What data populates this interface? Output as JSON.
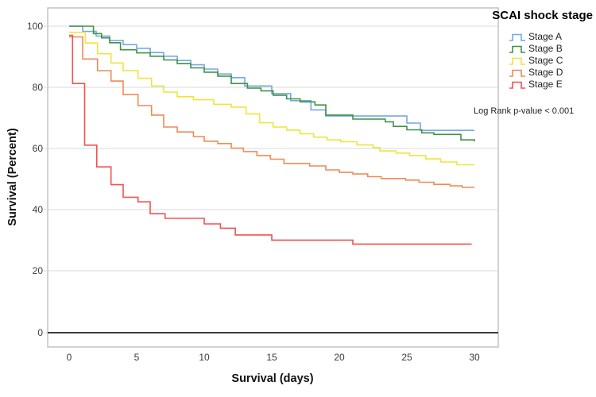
{
  "chart_data": {
    "type": "line",
    "subtype": "kaplan-meier-step",
    "legend_title": "SCAI shock stage",
    "annotation": "Log Rank p-value < 0.001",
    "xlabel": "Survival (days)",
    "ylabel": "Survival (Percent)",
    "xlim": [
      0,
      30
    ],
    "ylim": [
      0,
      100
    ],
    "x_ticks": [
      "0",
      "5",
      "10",
      "15",
      "20",
      "25",
      "30"
    ],
    "y_ticks": [
      "100",
      "80",
      "60",
      "40",
      "20",
      "0"
    ],
    "grid": true,
    "legend_position": "top-right",
    "series": [
      {
        "name": "Stage A",
        "color": "#74A9E6",
        "points": [
          [
            0,
            100
          ],
          [
            1,
            98.3
          ],
          [
            2,
            96.8
          ],
          [
            3,
            95.3
          ],
          [
            4,
            94.0
          ],
          [
            5,
            92.8
          ],
          [
            6,
            91.4
          ],
          [
            7,
            90.2
          ],
          [
            8,
            88.8
          ],
          [
            9,
            87.4
          ],
          [
            10,
            86.0
          ],
          [
            11,
            84.4
          ],
          [
            12,
            83.2
          ],
          [
            13,
            80.5
          ],
          [
            15,
            78.0
          ],
          [
            16.4,
            75.7
          ],
          [
            17.9,
            72.7
          ],
          [
            19,
            70.7
          ],
          [
            25,
            68.4
          ],
          [
            26,
            66.0
          ],
          [
            30,
            66.0
          ]
        ]
      },
      {
        "name": "Stage B",
        "color": "#3F9245",
        "points": [
          [
            0,
            100
          ],
          [
            1.8,
            97.6
          ],
          [
            2.4,
            96.2
          ],
          [
            3,
            94.6
          ],
          [
            3.8,
            92.3
          ],
          [
            5,
            91.3
          ],
          [
            6,
            90.2
          ],
          [
            7,
            89.0
          ],
          [
            8,
            87.8
          ],
          [
            9,
            86.4
          ],
          [
            10,
            85.0
          ],
          [
            11,
            83.7
          ],
          [
            12,
            81.3
          ],
          [
            13.2,
            79.8
          ],
          [
            14.2,
            78.9
          ],
          [
            15.1,
            77.5
          ],
          [
            16.1,
            76.3
          ],
          [
            17.1,
            75.3
          ],
          [
            18.2,
            74.3
          ],
          [
            19,
            71.0
          ],
          [
            21,
            69.7
          ],
          [
            23.4,
            68.8
          ],
          [
            24,
            67.3
          ],
          [
            25,
            66.2
          ],
          [
            26.1,
            65.2
          ],
          [
            27,
            64.7
          ],
          [
            29,
            62.9
          ],
          [
            30,
            62.4
          ]
        ]
      },
      {
        "name": "Stage C",
        "color": "#F0E43C",
        "points": [
          [
            0,
            98.0
          ],
          [
            1.2,
            94.5
          ],
          [
            2.1,
            91.0
          ],
          [
            3.1,
            88.0
          ],
          [
            4,
            85.5
          ],
          [
            5.1,
            83.0
          ],
          [
            6.1,
            80.5
          ],
          [
            7,
            78.5
          ],
          [
            8,
            77.0
          ],
          [
            9.2,
            76.0
          ],
          [
            10.7,
            74.5
          ],
          [
            12,
            73.6
          ],
          [
            13.1,
            71.4
          ],
          [
            14.1,
            68.5
          ],
          [
            15.1,
            67.1
          ],
          [
            16.1,
            66.1
          ],
          [
            17.1,
            64.9
          ],
          [
            18.1,
            63.8
          ],
          [
            19.1,
            62.9
          ],
          [
            20.1,
            62.3
          ],
          [
            21.3,
            61.3
          ],
          [
            22.5,
            60.4
          ],
          [
            23,
            59.3
          ],
          [
            24.2,
            58.6
          ],
          [
            25.2,
            57.8
          ],
          [
            26.4,
            56.7
          ],
          [
            27.5,
            55.7
          ],
          [
            28.7,
            54.8
          ],
          [
            30,
            54.8
          ]
        ]
      },
      {
        "name": "Stage D",
        "color": "#F08A55",
        "points": [
          [
            0,
            96.5
          ],
          [
            1,
            89.3
          ],
          [
            2.1,
            85.5
          ],
          [
            3.1,
            82.1
          ],
          [
            4,
            77.7
          ],
          [
            5.1,
            74.1
          ],
          [
            6.1,
            71.0
          ],
          [
            7,
            67.1
          ],
          [
            8,
            65.5
          ],
          [
            9.2,
            64.0
          ],
          [
            10,
            62.5
          ],
          [
            11,
            61.7
          ],
          [
            12,
            60.2
          ],
          [
            12.9,
            59.1
          ],
          [
            13.9,
            57.8
          ],
          [
            14.9,
            56.6
          ],
          [
            15.9,
            55.2
          ],
          [
            17.8,
            54.4
          ],
          [
            19,
            53.1
          ],
          [
            20,
            52.3
          ],
          [
            21,
            51.8
          ],
          [
            22.1,
            50.9
          ],
          [
            23.1,
            50.3
          ],
          [
            24.9,
            49.8
          ],
          [
            25.9,
            49.1
          ],
          [
            27,
            48.4
          ],
          [
            28.2,
            47.9
          ],
          [
            29.1,
            47.4
          ],
          [
            30,
            47.4
          ]
        ]
      },
      {
        "name": "Stage E",
        "color": "#EF5350",
        "points": [
          [
            0,
            97.0
          ],
          [
            0.25,
            81.3
          ],
          [
            1.15,
            61.2
          ],
          [
            2.05,
            54.1
          ],
          [
            3.1,
            48.3
          ],
          [
            4,
            44.2
          ],
          [
            5.1,
            42.7
          ],
          [
            6,
            38.8
          ],
          [
            7.1,
            37.3
          ],
          [
            10,
            35.5
          ],
          [
            11.2,
            34.1
          ],
          [
            12.3,
            31.9
          ],
          [
            15,
            30.2
          ],
          [
            21,
            28.9
          ],
          [
            29.8,
            28.9
          ]
        ]
      }
    ]
  }
}
